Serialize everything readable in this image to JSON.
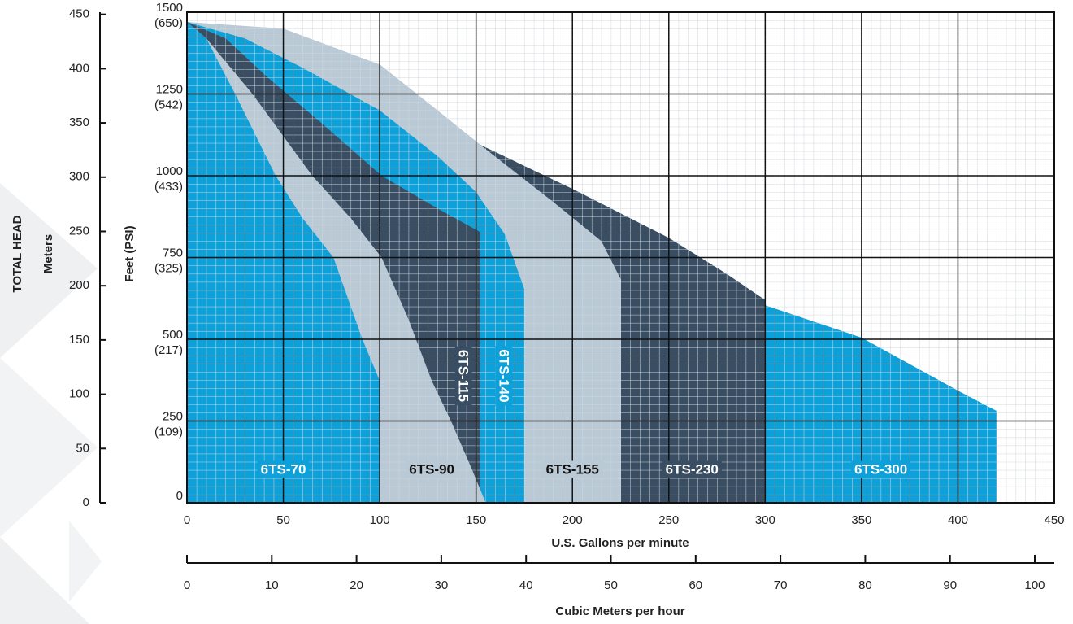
{
  "chart_data": {
    "type": "area",
    "y_title": "TOTAL HEAD",
    "y2_title": "Meters",
    "y_axis_title": "Feet (PSI)",
    "x_title": "U.S. Gallons per minute",
    "x2_title": "Cubic Meters per hour",
    "xlim": [
      0,
      450
    ],
    "xticks": [
      0,
      50,
      100,
      150,
      200,
      250,
      300,
      350,
      400,
      450
    ],
    "ylim": [
      0,
      1500
    ],
    "yticks": [
      {
        "value": 0,
        "label": "0"
      },
      {
        "value": 250,
        "label": "250",
        "sublabel": "(109)"
      },
      {
        "value": 500,
        "label": "500",
        "sublabel": "(217)"
      },
      {
        "value": 750,
        "label": "750",
        "sublabel": "(325)"
      },
      {
        "value": 1000,
        "label": "1000",
        "sublabel": "(433)"
      },
      {
        "value": 1250,
        "label": "1250",
        "sublabel": "(542)"
      },
      {
        "value": 1500,
        "label": "1500",
        "sublabel": "(650)"
      }
    ],
    "y2lim": [
      0,
      452
    ],
    "y2ticks": [
      0,
      50,
      100,
      150,
      200,
      250,
      300,
      350,
      400,
      450
    ],
    "x2lim": [
      0,
      102.3
    ],
    "x2ticks": [
      0,
      10,
      20,
      30,
      40,
      50,
      60,
      70,
      80,
      90,
      100
    ],
    "grid": true,
    "series": [
      {
        "name": "6TS-70",
        "color": "#0ea1d9",
        "label_color": "#ffffff",
        "x": [
          0,
          10,
          25,
          46,
          60,
          76,
          91,
          100
        ],
        "values": [
          1470,
          1420,
          1250,
          1000,
          870,
          750,
          500,
          373
        ]
      },
      {
        "name": "6TS-90",
        "color": "#b9c9d5",
        "label_color": "#111111",
        "x": [
          0,
          10,
          34,
          65,
          85,
          101,
          115,
          127,
          137,
          148,
          155
        ],
        "values": [
          1470,
          1420,
          1250,
          1000,
          870,
          750,
          560,
          373,
          250,
          100,
          0
        ]
      },
      {
        "name": "6TS-115",
        "color": "#394e63",
        "label_color": "#ffffff",
        "x": [
          0,
          20,
          42,
          70,
          101,
          130,
          152
        ],
        "values": [
          1470,
          1420,
          1300,
          1160,
          1000,
          900,
          828
        ]
      },
      {
        "name": "6TS-140",
        "color": "#0ea1d9",
        "label_color": "#ffffff",
        "x": [
          0,
          30,
          60,
          100,
          130,
          150,
          165,
          175
        ],
        "values": [
          1470,
          1420,
          1330,
          1200,
          1060,
          950,
          820,
          654
        ]
      },
      {
        "name": "6TS-155",
        "color": "#b9c9d5",
        "label_color": "#111111",
        "x": [
          0,
          50,
          100,
          130,
          152,
          190,
          215,
          225
        ],
        "values": [
          1470,
          1450,
          1340,
          1200,
          1095,
          920,
          800,
          684
        ]
      },
      {
        "name": "6TS-230",
        "color": "#394e63",
        "label_color": "#ffffff",
        "x": [
          0,
          100,
          152,
          200,
          250,
          280,
          300
        ],
        "values": [
          1470,
          1340,
          1095,
          960,
          810,
          700,
          620
        ]
      },
      {
        "name": "6TS-300",
        "color": "#0ea1d9",
        "label_color": "#ffffff",
        "x": [
          0,
          50,
          100,
          150,
          200,
          250,
          300,
          350,
          400,
          420
        ],
        "values": [
          1470,
          1440,
          1340,
          1090,
          950,
          800,
          604,
          505,
          343,
          281
        ]
      }
    ]
  }
}
